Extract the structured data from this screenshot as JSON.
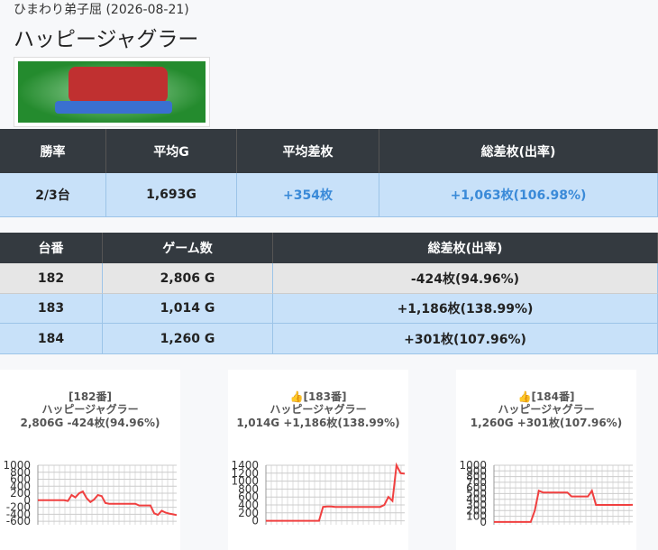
{
  "header": {
    "subtitle": "ひまわり弟子屈 (2026-08-21)",
    "title": "ハッピージャグラー"
  },
  "summary_table": {
    "columns": [
      "勝率",
      "平均G",
      "平均差枚",
      "総差枚(出率)"
    ],
    "rows": [
      [
        "2/3台",
        "1,693G",
        "+354枚",
        "+1,063枚(106.98%)"
      ]
    ]
  },
  "machine_table": {
    "columns": [
      "台番",
      "ゲーム数",
      "総差枚(出率)"
    ],
    "rows": [
      [
        "182",
        "2,806 G",
        "-424枚(94.96%)"
      ],
      [
        "183",
        "1,014 G",
        "+1,186枚(138.99%)"
      ],
      [
        "184",
        "1,260 G",
        "+301枚(107.96%)"
      ]
    ]
  },
  "chart_data": [
    {
      "type": "line",
      "title": "[182番]",
      "subtitle": "ハッピージャグラー",
      "caption": "2,806G -424枚(94.96%)",
      "color": "#f04040",
      "grid": true,
      "ylim": [
        -700,
        1000
      ],
      "yticks": [
        1000,
        800,
        600,
        400,
        200,
        0,
        -200,
        -400,
        -600
      ],
      "values": [
        0,
        0,
        0,
        0,
        0,
        0,
        0,
        0,
        -20,
        150,
        80,
        200,
        250,
        60,
        -50,
        20,
        150,
        120,
        -80,
        -100,
        -100,
        -100,
        -100,
        -100,
        -100,
        -100,
        -100,
        -150,
        -150,
        -150,
        -150,
        -370,
        -420,
        -300,
        -350,
        -380,
        -400,
        -424
      ]
    },
    {
      "type": "line",
      "title": "👍[183番]",
      "subtitle": "ハッピージャグラー",
      "caption": "1,014G +1,186枚(138.99%)",
      "color": "#f04040",
      "grid": true,
      "ylim": [
        -100,
        1400
      ],
      "yticks": [
        1400,
        1200,
        1000,
        800,
        600,
        400,
        200,
        0
      ],
      "values": [
        0,
        0,
        0,
        0,
        0,
        0,
        0,
        0,
        0,
        0,
        0,
        0,
        0,
        0,
        350,
        360,
        360,
        350,
        350,
        350,
        350,
        350,
        350,
        350,
        350,
        350,
        350,
        350,
        350,
        400,
        600,
        500,
        1400,
        1200,
        1186
      ]
    },
    {
      "type": "line",
      "title": "👍[184番]",
      "subtitle": "ハッピージャグラー",
      "caption": "1,260G +301枚(107.96%)",
      "color": "#f04040",
      "grid": true,
      "ylim": [
        -50,
        1000
      ],
      "yticks": [
        1000,
        900,
        800,
        700,
        600,
        500,
        400,
        300,
        200,
        100,
        0
      ],
      "values": [
        0,
        0,
        0,
        0,
        0,
        0,
        0,
        0,
        0,
        0,
        200,
        550,
        520,
        520,
        520,
        520,
        520,
        520,
        520,
        450,
        450,
        450,
        450,
        450,
        550,
        300,
        300,
        300,
        300,
        300,
        300,
        300,
        300,
        300,
        301
      ]
    }
  ]
}
